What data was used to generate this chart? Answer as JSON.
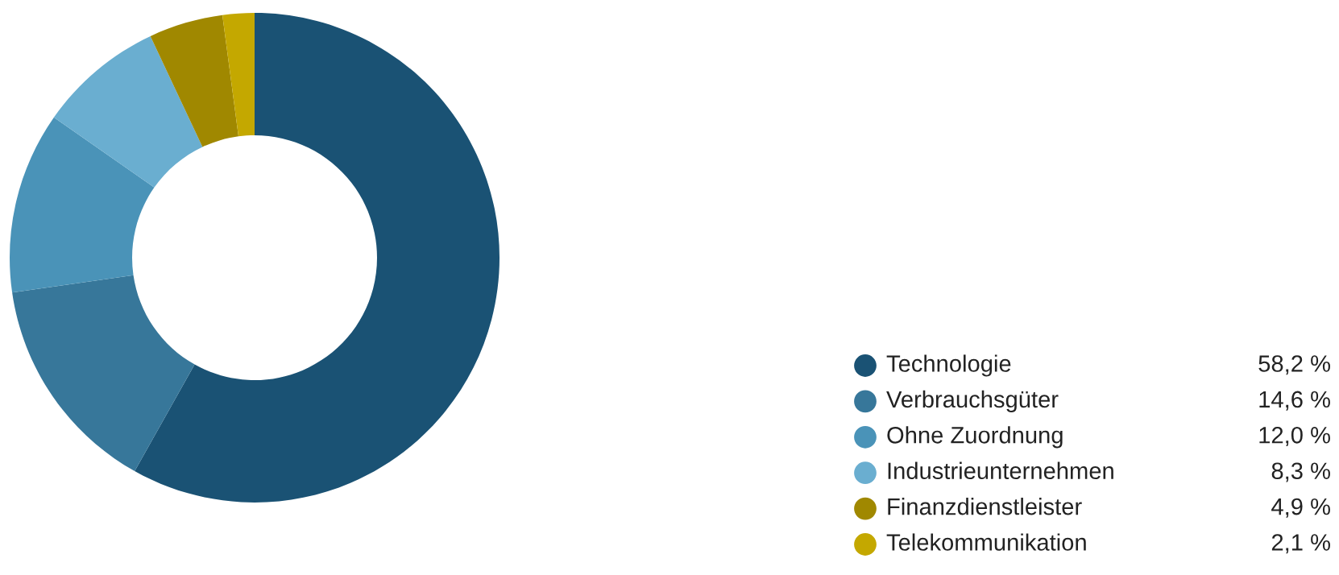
{
  "chart_data": {
    "type": "donut",
    "categories": [
      "Technologie",
      "Verbrauchsgüter",
      "Ohne Zuordnung",
      "Industrieunternehmen",
      "Finanzdienstleister",
      "Telekommunikation"
    ],
    "values": [
      58.2,
      14.6,
      12.0,
      8.3,
      4.9,
      2.1
    ],
    "value_labels": [
      "58,2 %",
      "14,6 %",
      "12,0 %",
      "8,3 %",
      "4,9 %",
      "2,1 %"
    ],
    "colors": [
      "#1a5274",
      "#37779a",
      "#4a93b8",
      "#6aaed0",
      "#a08800",
      "#c4a800"
    ],
    "legend": "bottom right"
  }
}
